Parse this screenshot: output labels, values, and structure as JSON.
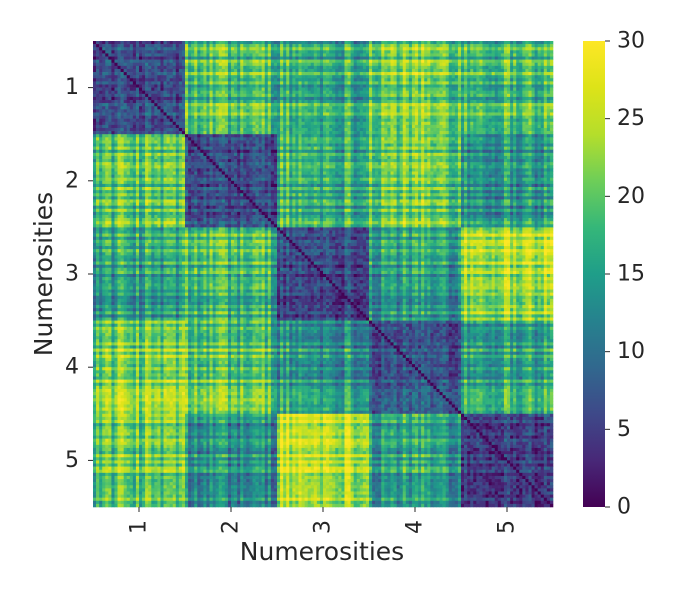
{
  "chart_data": {
    "type": "heatmap",
    "title": "",
    "xlabel": "Numerosities",
    "ylabel": "Numerosities",
    "categories": [
      "1",
      "2",
      "3",
      "4",
      "5"
    ],
    "colormap": "viridis",
    "colorbar": {
      "min": 0,
      "max": 30,
      "ticks": [
        0,
        5,
        10,
        15,
        20,
        25,
        30
      ]
    },
    "block_means": [
      [
        6,
        19,
        17,
        21,
        19
      ],
      [
        19,
        6,
        17,
        20,
        14
      ],
      [
        15,
        18,
        6,
        15,
        24
      ],
      [
        21,
        19,
        14,
        7,
        16
      ],
      [
        20,
        13,
        25,
        15,
        5
      ]
    ],
    "samples_per_numerosity": 30,
    "grid": false
  }
}
